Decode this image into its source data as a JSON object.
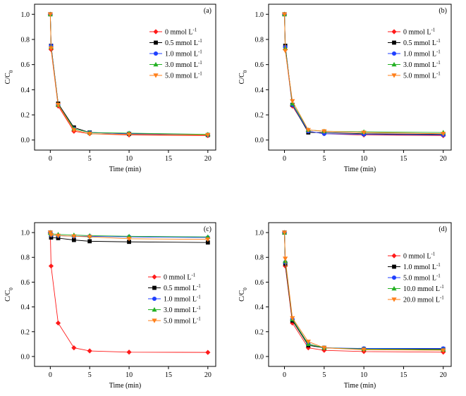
{
  "chart_data": [
    {
      "type": "line",
      "panel_label": "(a)",
      "xlabel": "Time (min)",
      "ylabel_main": "C/C",
      "ylabel_sub": "0",
      "xlim": [
        -2,
        21
      ],
      "ylim": [
        -0.08,
        1.08
      ],
      "xticks": [
        0,
        5,
        10,
        15,
        20
      ],
      "yticks": [
        0.0,
        0.2,
        0.4,
        0.6,
        0.8,
        1.0
      ],
      "x": [
        0,
        0.1,
        1,
        3,
        5,
        10,
        20
      ],
      "legend_position": "right",
      "series": [
        {
          "name": "0 mmol L",
          "sup": "-1",
          "marker": "diamond",
          "color": "#ff1a1a",
          "values": [
            1.0,
            0.72,
            0.27,
            0.07,
            0.05,
            0.04,
            0.035
          ]
        },
        {
          "name": "0.5 mmol L",
          "sup": "-1",
          "marker": "square",
          "color": "#000000",
          "values": [
            1.0,
            0.75,
            0.29,
            0.1,
            0.06,
            0.05,
            0.04
          ]
        },
        {
          "name": "1.0 mmol L",
          "sup": "-1",
          "marker": "circle",
          "color": "#1f3fff",
          "values": [
            1.0,
            0.75,
            0.28,
            0.09,
            0.06,
            0.05,
            0.04
          ]
        },
        {
          "name": "3.0 mmol L",
          "sup": "-1",
          "marker": "triangle-up",
          "color": "#22b022",
          "values": [
            1.0,
            0.74,
            0.28,
            0.09,
            0.06,
            0.055,
            0.045
          ]
        },
        {
          "name": "5.0 mmol L",
          "sup": "-1",
          "marker": "triangle-down",
          "color": "#ff7f1a",
          "values": [
            1.0,
            0.73,
            0.28,
            0.08,
            0.05,
            0.045,
            0.04
          ]
        }
      ]
    },
    {
      "type": "line",
      "panel_label": "(b)",
      "xlabel": "Time (min)",
      "ylabel_main": "C/C",
      "ylabel_sub": "0",
      "xlim": [
        -2,
        21
      ],
      "ylim": [
        -0.08,
        1.08
      ],
      "xticks": [
        0,
        5,
        10,
        15,
        20
      ],
      "yticks": [
        0.0,
        0.2,
        0.4,
        0.6,
        0.8,
        1.0
      ],
      "x": [
        0,
        0.1,
        1,
        3,
        5,
        10,
        20
      ],
      "legend_position": "right",
      "series": [
        {
          "name": "0 mmol L",
          "sup": "-1",
          "marker": "diamond",
          "color": "#ff1a1a",
          "values": [
            1.0,
            0.72,
            0.27,
            0.07,
            0.05,
            0.04,
            0.035
          ]
        },
        {
          "name": "0.5 mmol L",
          "sup": "-1",
          "marker": "square",
          "color": "#000000",
          "values": [
            1.0,
            0.75,
            0.28,
            0.06,
            0.06,
            0.05,
            0.045
          ]
        },
        {
          "name": "1.0 mmol L",
          "sup": "-1",
          "marker": "circle",
          "color": "#1f3fff",
          "values": [
            1.0,
            0.74,
            0.28,
            0.07,
            0.05,
            0.045,
            0.04
          ]
        },
        {
          "name": "3.0 mmol L",
          "sup": "-1",
          "marker": "triangle-up",
          "color": "#22b022",
          "values": [
            1.0,
            0.73,
            0.29,
            0.08,
            0.07,
            0.065,
            0.06
          ]
        },
        {
          "name": "5.0 mmol L",
          "sup": "-1",
          "marker": "triangle-down",
          "color": "#ff7f1a",
          "values": [
            1.0,
            0.71,
            0.31,
            0.08,
            0.07,
            0.06,
            0.05
          ]
        }
      ]
    },
    {
      "type": "line",
      "panel_label": "(c)",
      "xlabel": "Time (min)",
      "ylabel_main": "C/C",
      "ylabel_sub": "0",
      "xlim": [
        -2,
        21
      ],
      "ylim": [
        -0.08,
        1.08
      ],
      "xticks": [
        0,
        5,
        10,
        15,
        20
      ],
      "yticks": [
        0.0,
        0.2,
        0.4,
        0.6,
        0.8,
        1.0
      ],
      "x": [
        0,
        0.1,
        1,
        3,
        5,
        10,
        20
      ],
      "legend_position": "center-right",
      "series": [
        {
          "name": "0 mmol L",
          "sup": "-1",
          "marker": "diamond",
          "color": "#ff1a1a",
          "values": [
            1.0,
            0.73,
            0.27,
            0.07,
            0.045,
            0.035,
            0.033
          ]
        },
        {
          "name": "0.5 mmol L",
          "sup": "-1",
          "marker": "square",
          "color": "#000000",
          "values": [
            1.0,
            0.96,
            0.955,
            0.94,
            0.93,
            0.925,
            0.92
          ]
        },
        {
          "name": "1.0 mmol L",
          "sup": "-1",
          "marker": "circle",
          "color": "#1f3fff",
          "values": [
            1.0,
            0.98,
            0.975,
            0.97,
            0.97,
            0.965,
            0.96
          ]
        },
        {
          "name": "3.0 mmol L",
          "sup": "-1",
          "marker": "triangle-up",
          "color": "#22b022",
          "values": [
            1.0,
            0.99,
            0.985,
            0.98,
            0.975,
            0.97,
            0.965
          ]
        },
        {
          "name": "5.0 mmol L",
          "sup": "-1",
          "marker": "triangle-down",
          "color": "#ff7f1a",
          "values": [
            1.0,
            0.98,
            0.975,
            0.97,
            0.965,
            0.95,
            0.945
          ]
        }
      ]
    },
    {
      "type": "line",
      "panel_label": "(d)",
      "xlabel": "Time (min)",
      "ylabel_main": "C/C",
      "ylabel_sub": "0",
      "xlim": [
        -2,
        21
      ],
      "ylim": [
        -0.08,
        1.08
      ],
      "xticks": [
        0,
        5,
        10,
        15,
        20
      ],
      "yticks": [
        0.0,
        0.2,
        0.4,
        0.6,
        0.8,
        1.0
      ],
      "x": [
        0,
        0.1,
        1,
        3,
        5,
        10,
        20
      ],
      "legend_position": "right",
      "series": [
        {
          "name": "0 mmol L",
          "sup": "-1",
          "marker": "diamond",
          "color": "#ff1a1a",
          "values": [
            1.0,
            0.73,
            0.27,
            0.07,
            0.05,
            0.04,
            0.035
          ]
        },
        {
          "name": "1.0 mmol L",
          "sup": "-1",
          "marker": "square",
          "color": "#000000",
          "values": [
            1.0,
            0.75,
            0.29,
            0.09,
            0.07,
            0.06,
            0.06
          ]
        },
        {
          "name": "5.0 mmol L",
          "sup": "-1",
          "marker": "circle",
          "color": "#1f3fff",
          "values": [
            1.0,
            0.76,
            0.3,
            0.1,
            0.07,
            0.065,
            0.065
          ]
        },
        {
          "name": "10.0 mmol L",
          "sup": "-1",
          "marker": "triangle-up",
          "color": "#22b022",
          "values": [
            1.0,
            0.77,
            0.3,
            0.1,
            0.07,
            0.06,
            0.055
          ]
        },
        {
          "name": "20.0 mmol L",
          "sup": "-1",
          "marker": "triangle-down",
          "color": "#ff7f1a",
          "values": [
            1.0,
            0.79,
            0.31,
            0.12,
            0.07,
            0.055,
            0.05
          ]
        }
      ]
    }
  ]
}
